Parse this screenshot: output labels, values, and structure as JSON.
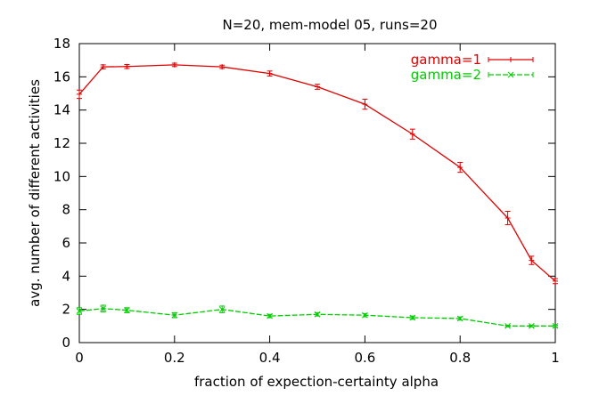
{
  "chart_data": {
    "type": "line",
    "title": "N=20, mem-model 05, runs=20",
    "xlabel": "fraction of expection-certainty alpha",
    "ylabel": "avg. number of different activities",
    "xlim": [
      0,
      1
    ],
    "ylim": [
      0,
      18
    ],
    "xticks": [
      0,
      0.2,
      0.4,
      0.6,
      0.8,
      1
    ],
    "xtick_labels": [
      "0",
      "0.2",
      "0.4",
      "0.6",
      "0.8",
      "1"
    ],
    "yticks": [
      0,
      2,
      4,
      6,
      8,
      10,
      12,
      14,
      16,
      18
    ],
    "ytick_labels": [
      "0",
      "2",
      "4",
      "6",
      "8",
      "10",
      "12",
      "14",
      "16",
      "18"
    ],
    "grid": false,
    "legend_position": "top-right",
    "x": [
      0,
      0.05,
      0.1,
      0.2,
      0.3,
      0.4,
      0.5,
      0.6,
      0.7,
      0.8,
      0.9,
      0.95,
      1
    ],
    "series": [
      {
        "name": "gamma=1",
        "color": "#e00000",
        "marker": "plus",
        "values": [
          14.95,
          16.6,
          16.62,
          16.72,
          16.6,
          16.2,
          15.4,
          14.35,
          12.55,
          10.55,
          7.5,
          4.95,
          3.7
        ],
        "errors": [
          0.25,
          0.12,
          0.12,
          0.1,
          0.1,
          0.15,
          0.15,
          0.3,
          0.3,
          0.3,
          0.4,
          0.25,
          0.15
        ]
      },
      {
        "name": "gamma=2",
        "color": "#00cc00",
        "marker": "x",
        "values": [
          1.9,
          2.05,
          1.95,
          1.65,
          2.0,
          1.6,
          1.7,
          1.65,
          1.5,
          1.45,
          1.0,
          1.0,
          1.0
        ],
        "errors": [
          0.2,
          0.2,
          0.15,
          0.15,
          0.2,
          0.1,
          0.1,
          0.1,
          0.1,
          0.1,
          0.05,
          0.05,
          0.05
        ]
      }
    ]
  }
}
